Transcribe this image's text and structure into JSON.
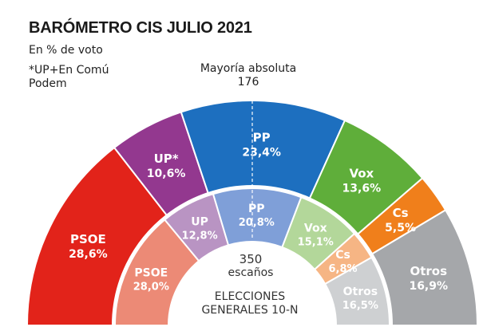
{
  "title": "BARÓMETRO CIS JULIO 2021",
  "subtitle": "En % de voto",
  "footnote": "*UP+En Comú Podem",
  "majority_label": "Mayoría absoluta 176",
  "chart_data": [
    {
      "type": "pie",
      "variant": "semicircle",
      "name": "Barómetro CIS julio 2021",
      "unit": "%",
      "categories": [
        "PSOE",
        "UP*",
        "PP",
        "Vox",
        "Cs",
        "Otros"
      ],
      "values": [
        28.6,
        10.6,
        23.4,
        13.6,
        5.5,
        16.9
      ],
      "labels": [
        "28,6%",
        "10,6%",
        "23,4%",
        "13,6%",
        "5,5%",
        "16,9%"
      ],
      "colors": [
        "#e2231a",
        "#93388f",
        "#1d6fbf",
        "#5fae3a",
        "#f07f1b",
        "#a5a7aa"
      ]
    },
    {
      "type": "pie",
      "variant": "semicircle",
      "name": "Elecciones generales 10-N",
      "unit": "%",
      "categories": [
        "PSOE",
        "UP",
        "PP",
        "Vox",
        "Cs",
        "Otros"
      ],
      "values": [
        28.0,
        12.8,
        20.8,
        15.1,
        6.8,
        16.5
      ],
      "labels": [
        "28,0%",
        "12,8%",
        "20,8%",
        "15,1%",
        "6,8%",
        "16,5%"
      ],
      "colors": [
        "#ec8a76",
        "#b994c3",
        "#7f9fd8",
        "#b3d79a",
        "#f6b584",
        "#ced0d2"
      ]
    }
  ],
  "center": {
    "seats_number": "350",
    "seats_word": "escaños",
    "election_line1": "ELECCIONES",
    "election_line2": "GENERALES  10-N"
  }
}
